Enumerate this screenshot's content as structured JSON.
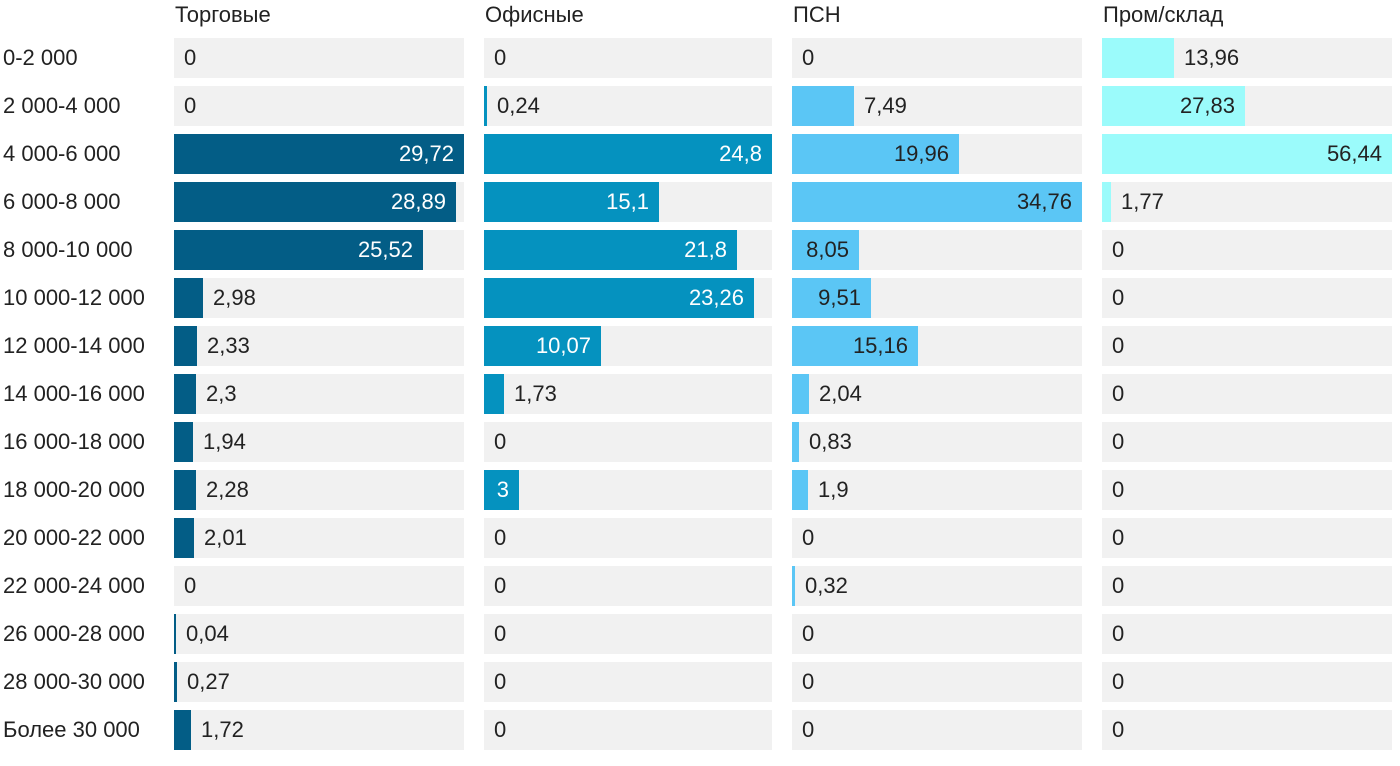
{
  "chart_data": {
    "type": "bar",
    "orientation": "horizontal",
    "layout": "small-multiples",
    "categories": [
      "0-2 000",
      "2 000-4 000",
      "4 000-6 000",
      "6 000-8 000",
      "8 000-10 000",
      "10 000-12 000",
      "12 000-14 000",
      "14 000-16 000",
      "16 000-18 000",
      "18 000-20 000",
      "20 000-22 000",
      "22 000-24 000",
      "26 000-28 000",
      "28 000-30 000",
      "Более 30 000"
    ],
    "series": [
      {
        "name": "Торговые",
        "color": "#035d86",
        "xlim": [
          0,
          29.72
        ],
        "values": [
          0,
          0,
          29.72,
          28.89,
          25.52,
          2.98,
          2.33,
          2.3,
          1.94,
          2.28,
          2.01,
          0,
          0.04,
          0.27,
          1.72
        ],
        "labels": [
          "0",
          "0",
          "29,72",
          "28,89",
          "25,52",
          "2,98",
          "2,33",
          "2,3",
          "1,94",
          "2,28",
          "2,01",
          "0",
          "0,04",
          "0,27",
          "1,72"
        ]
      },
      {
        "name": "Офисные",
        "color": "#0592bf",
        "xlim": [
          0,
          24.8
        ],
        "values": [
          0,
          0.24,
          24.8,
          15.1,
          21.8,
          23.26,
          10.07,
          1.73,
          0,
          3,
          0,
          0,
          0,
          0,
          0
        ],
        "labels": [
          "0",
          "0,24",
          "24,8",
          "15,1",
          "21,8",
          "23,26",
          "10,07",
          "1,73",
          "0",
          "3",
          "0",
          "0",
          "0",
          "0",
          "0"
        ]
      },
      {
        "name": "ПСН",
        "color": "#5bc6f5",
        "xlim": [
          0,
          34.76
        ],
        "values": [
          0,
          7.49,
          19.96,
          34.76,
          8.05,
          9.51,
          15.16,
          2.04,
          0.83,
          1.9,
          0,
          0.32,
          0,
          0,
          0
        ],
        "labels": [
          "0",
          "7,49",
          "19,96",
          "34,76",
          "8,05",
          "9,51",
          "15,16",
          "2,04",
          "0,83",
          "1,9",
          "0",
          "0,32",
          "0",
          "0",
          "0"
        ]
      },
      {
        "name": "Пром/склад",
        "color": "#9bfbfb",
        "xlim": [
          0,
          56.44
        ],
        "values": [
          13.96,
          27.83,
          56.44,
          1.77,
          0,
          0,
          0,
          0,
          0,
          0,
          0,
          0,
          0,
          0,
          0
        ],
        "labels": [
          "13,96",
          "27,83",
          "56,44",
          "1,77",
          "0",
          "0",
          "0",
          "0",
          "0",
          "0",
          "0",
          "0",
          "0",
          "0",
          "0"
        ]
      }
    ],
    "grid": false,
    "legend": "panel-titles"
  }
}
